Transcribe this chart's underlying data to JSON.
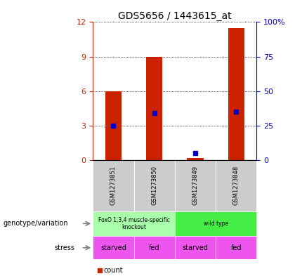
{
  "title": "GDS5656 / 1443615_at",
  "samples": [
    "GSM1273851",
    "GSM1273850",
    "GSM1273849",
    "GSM1273848"
  ],
  "counts": [
    6,
    9,
    0.2,
    11.5
  ],
  "percentile_ranks": [
    25,
    34,
    5,
    35
  ],
  "ylim_left": [
    0,
    12
  ],
  "ylim_right": [
    0,
    100
  ],
  "yticks_left": [
    0,
    3,
    6,
    9,
    12
  ],
  "yticks_right": [
    0,
    25,
    50,
    75,
    100
  ],
  "bar_color": "#cc2200",
  "dot_color": "#0000cc",
  "genotype_labels": [
    "FoxO 1,3,4 muscle-specific\nknockout",
    "wild type"
  ],
  "genotype_colors": [
    "#aaffaa",
    "#44ee44"
  ],
  "stress_labels": [
    "starved",
    "fed",
    "starved",
    "fed"
  ],
  "stress_color": "#ee55ee",
  "sample_bg_color": "#cccccc",
  "title_fontsize": 10,
  "bar_width": 0.4,
  "fig_width": 4.2,
  "fig_height": 3.93,
  "dpi": 100
}
